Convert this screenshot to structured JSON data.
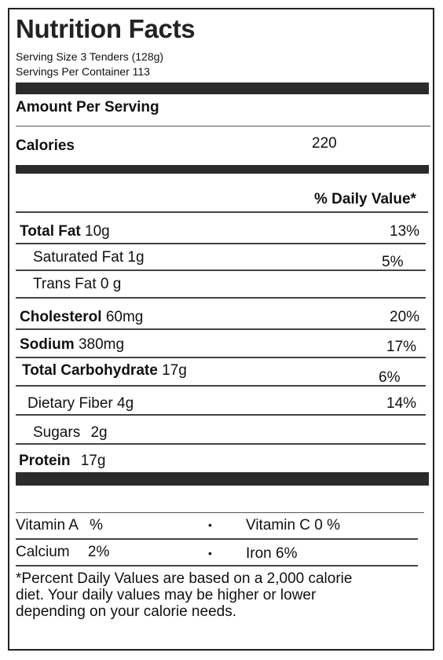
{
  "label": {
    "title": "Nutrition Facts",
    "serving_size": "Serving Size 3 Tenders (128g)",
    "servings_per_container_label": "Servings Per Container",
    "servings_per_container_value": "113",
    "amount_per_serving": "Amount Per Serving",
    "calories_label": "Calories",
    "calories_value": "220",
    "daily_value_header": "% Daily Value*",
    "nutrients": [
      {
        "name": "Total Fat",
        "amount": "10g",
        "dv": "13%"
      },
      {
        "name": "Saturated Fat",
        "amount": "1g",
        "dv": "5%"
      },
      {
        "name": "Trans Fat",
        "amount": "0 g",
        "dv": ""
      },
      {
        "name": "Cholesterol",
        "amount": "60mg",
        "dv": "20%"
      },
      {
        "name": "Sodium",
        "amount": "380mg",
        "dv": "17%"
      },
      {
        "name": "Total Carbohydrate",
        "amount": "17g",
        "dv": "6%"
      },
      {
        "name": "Dietary Fiber",
        "amount": "4g",
        "dv": "14%"
      },
      {
        "name": "Sugars",
        "amount": "2g",
        "dv": ""
      },
      {
        "name": "Protein",
        "amount": "17g",
        "dv": ""
      }
    ],
    "vitamins": {
      "vitamin_a": "Vitamin A",
      "vitamin_a_value": "%",
      "vitamin_c": "Vitamin C 0 %",
      "calcium": "Calcium",
      "calcium_value": "2%",
      "iron": "Iron 6%",
      "bullet": "•"
    },
    "footnote_line1": "*Percent Daily Values are based on a 2,000 calorie",
    "footnote_line2": "diet. Your daily values may be higher or lower",
    "footnote_line3": "depending on your calorie needs."
  }
}
